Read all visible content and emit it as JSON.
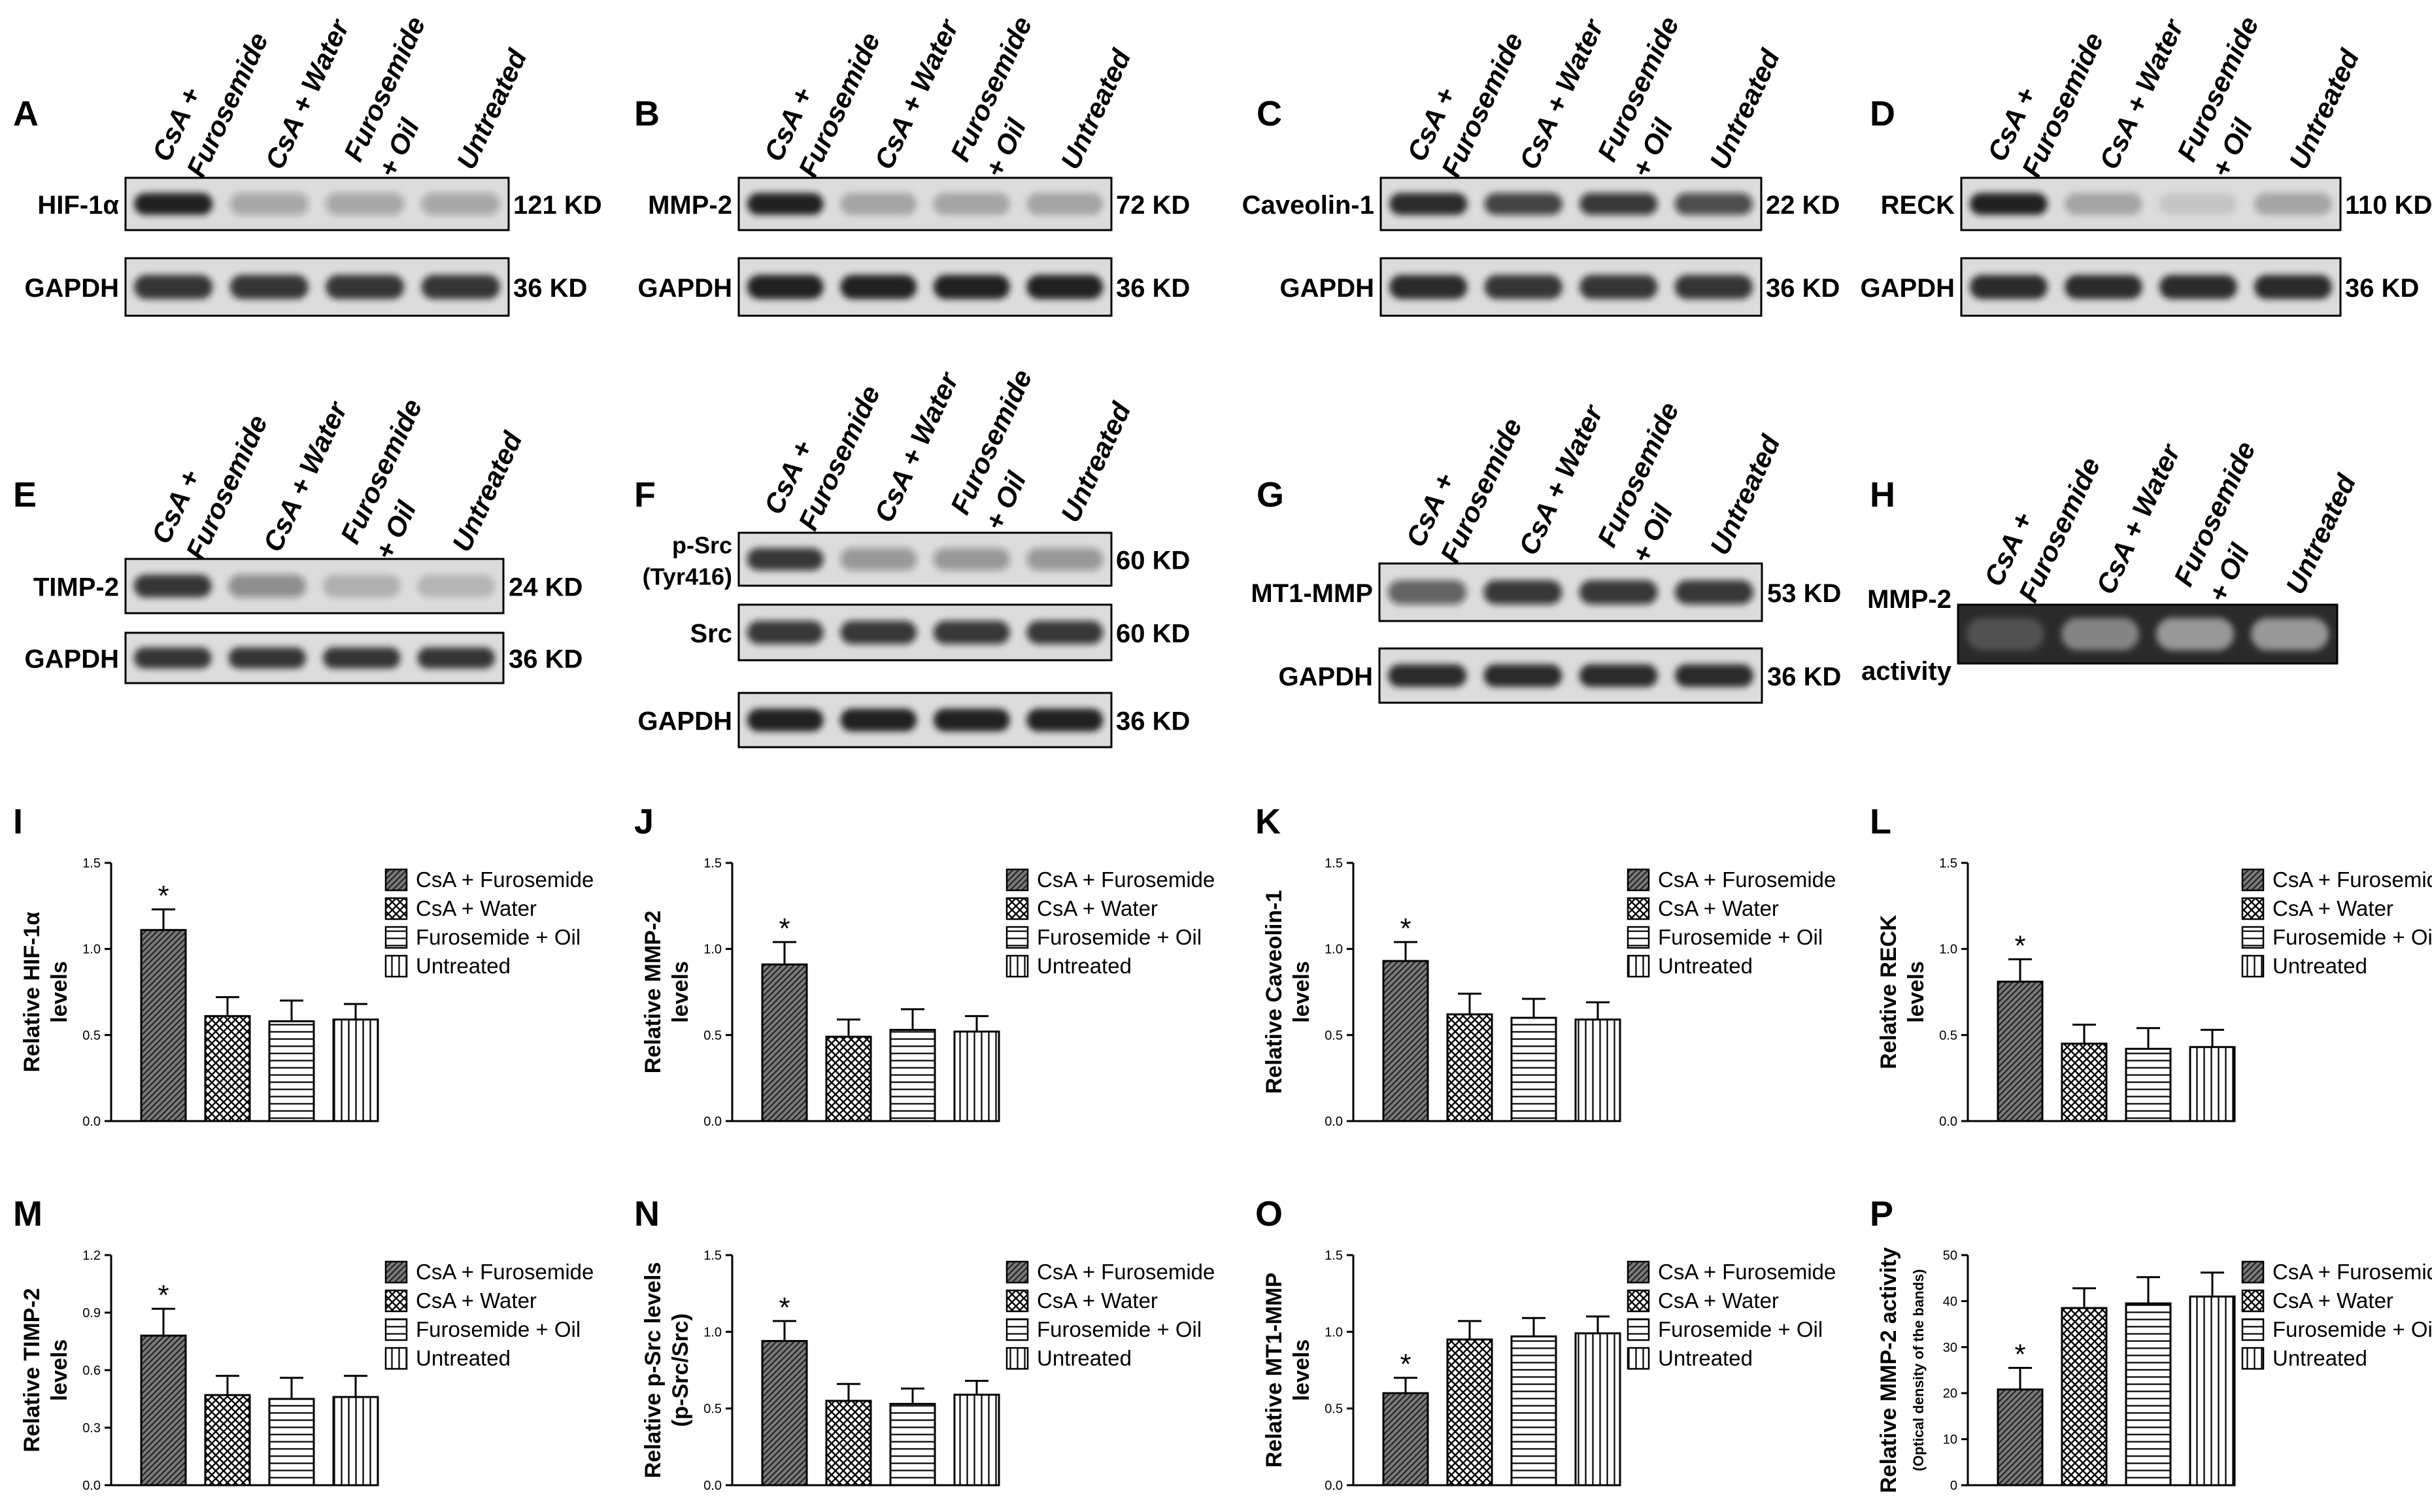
{
  "groups": [
    "CsA + Furosemide",
    "CsA + Water",
    "Furosemide + Oil",
    "Untreated"
  ],
  "lane_labels": [
    [
      "CsA +",
      "Furosemide"
    ],
    [
      "CsA + Water"
    ],
    [
      "Furosemide",
      "+ Oil"
    ],
    [
      "Untreated"
    ]
  ],
  "blots": [
    {
      "letter": "A",
      "rows": [
        {
          "label": [
            "HIF-1α"
          ],
          "size": "121 KD",
          "intensity": [
            0.95,
            0.28,
            0.28,
            0.28
          ]
        },
        {
          "label": [
            "GAPDH"
          ],
          "size": "36 KD",
          "intensity": [
            0.85,
            0.85,
            0.85,
            0.85
          ]
        }
      ]
    },
    {
      "letter": "B",
      "rows": [
        {
          "label": [
            "MMP-2"
          ],
          "size": "72 KD",
          "intensity": [
            0.95,
            0.25,
            0.25,
            0.25
          ]
        },
        {
          "label": [
            "GAPDH"
          ],
          "size": "36 KD",
          "intensity": [
            0.95,
            0.95,
            0.95,
            0.95
          ]
        }
      ]
    },
    {
      "letter": "C",
      "rows": [
        {
          "label": [
            "Caveolin-1"
          ],
          "size": "22 KD",
          "intensity": [
            0.9,
            0.75,
            0.8,
            0.7
          ]
        },
        {
          "label": [
            "GAPDH"
          ],
          "size": "36 KD",
          "intensity": [
            0.9,
            0.85,
            0.85,
            0.85
          ]
        }
      ]
    },
    {
      "letter": "D",
      "rows": [
        {
          "label": [
            "RECK"
          ],
          "size": "110 KD",
          "intensity": [
            0.95,
            0.25,
            0.1,
            0.25
          ]
        },
        {
          "label": [
            "GAPDH"
          ],
          "size": "36 KD",
          "intensity": [
            0.9,
            0.9,
            0.9,
            0.9
          ]
        }
      ]
    },
    {
      "letter": "E",
      "rows": [
        {
          "label": [
            "TIMP-2"
          ],
          "size": "24 KD",
          "intensity": [
            0.85,
            0.4,
            0.2,
            0.18
          ]
        },
        {
          "label": [
            "GAPDH"
          ],
          "size": "36 KD",
          "intensity": [
            0.85,
            0.85,
            0.85,
            0.85
          ]
        }
      ]
    },
    {
      "letter": "F",
      "rows": [
        {
          "label": [
            "p-Src",
            "(Tyr416)"
          ],
          "size": "60 KD",
          "intensity": [
            0.8,
            0.35,
            0.35,
            0.35
          ]
        },
        {
          "label": [
            "Src"
          ],
          "size": "60 KD",
          "intensity": [
            0.8,
            0.8,
            0.8,
            0.8
          ]
        },
        {
          "label": [
            "GAPDH"
          ],
          "size": "36 KD",
          "intensity": [
            0.95,
            0.95,
            0.95,
            0.95
          ]
        }
      ]
    },
    {
      "letter": "G",
      "rows": [
        {
          "label": [
            "MT1-MMP"
          ],
          "size": "53 KD",
          "intensity": [
            0.6,
            0.8,
            0.8,
            0.8
          ]
        },
        {
          "label": [
            "GAPDH"
          ],
          "size": "36 KD",
          "intensity": [
            0.9,
            0.9,
            0.9,
            0.9
          ]
        }
      ]
    },
    {
      "letter": "H",
      "rows": [
        {
          "label": [
            "MMP-2",
            "activity"
          ],
          "size": "",
          "intensity": [
            0.2,
            0.45,
            0.55,
            0.55
          ],
          "zymogram": true
        }
      ]
    }
  ],
  "chart_data": [
    {
      "letter": "I",
      "type": "bar",
      "categories": [
        "CsA + Furosemide",
        "CsA + Water",
        "Furosemide + Oil",
        "Untreated"
      ],
      "values": [
        1.11,
        0.61,
        0.58,
        0.59
      ],
      "errors": [
        0.12,
        0.11,
        0.12,
        0.09
      ],
      "significant": [
        true,
        false,
        false,
        false
      ],
      "ylabel": [
        "Relative HIF-1α",
        "levels"
      ],
      "ylim": [
        0,
        1.5
      ],
      "yticks": [
        "0.0",
        "0.5",
        "1.0",
        "1.5"
      ]
    },
    {
      "letter": "J",
      "type": "bar",
      "categories": [
        "CsA + Furosemide",
        "CsA + Water",
        "Furosemide + Oil",
        "Untreated"
      ],
      "values": [
        0.91,
        0.49,
        0.53,
        0.52
      ],
      "errors": [
        0.13,
        0.1,
        0.12,
        0.09
      ],
      "significant": [
        true,
        false,
        false,
        false
      ],
      "ylabel": [
        "Relative MMP-2",
        "levels"
      ],
      "ylim": [
        0,
        1.5
      ],
      "yticks": [
        "0.0",
        "0.5",
        "1.0",
        "1.5"
      ]
    },
    {
      "letter": "K",
      "type": "bar",
      "categories": [
        "CsA + Furosemide",
        "CsA + Water",
        "Furosemide + Oil",
        "Untreated"
      ],
      "values": [
        0.93,
        0.62,
        0.6,
        0.59
      ],
      "errors": [
        0.11,
        0.12,
        0.11,
        0.1
      ],
      "significant": [
        true,
        false,
        false,
        false
      ],
      "ylabel": [
        "Relative Caveolin-1",
        "levels"
      ],
      "ylim": [
        0,
        1.5
      ],
      "yticks": [
        "0.0",
        "0.5",
        "1.0",
        "1.5"
      ]
    },
    {
      "letter": "L",
      "type": "bar",
      "categories": [
        "CsA + Furosemide",
        "CsA + Water",
        "Furosemide + Oil",
        "Untreated"
      ],
      "values": [
        0.81,
        0.45,
        0.42,
        0.43
      ],
      "errors": [
        0.13,
        0.11,
        0.12,
        0.1
      ],
      "significant": [
        true,
        false,
        false,
        false
      ],
      "ylabel": [
        "Relative RECK",
        "levels"
      ],
      "ylim": [
        0,
        1.5
      ],
      "yticks": [
        "0.0",
        "0.5",
        "1.0",
        "1.5"
      ]
    },
    {
      "letter": "M",
      "type": "bar",
      "categories": [
        "CsA + Furosemide",
        "CsA + Water",
        "Furosemide + Oil",
        "Untreated"
      ],
      "values": [
        0.78,
        0.47,
        0.45,
        0.46
      ],
      "errors": [
        0.14,
        0.1,
        0.11,
        0.11
      ],
      "significant": [
        true,
        false,
        false,
        false
      ],
      "ylabel": [
        "Relative TIMP-2",
        "levels"
      ],
      "ylim": [
        0,
        1.2
      ],
      "yticks": [
        "0.0",
        "0.3",
        "0.6",
        "0.9",
        "1.2"
      ]
    },
    {
      "letter": "N",
      "type": "bar",
      "categories": [
        "CsA + Furosemide",
        "CsA + Water",
        "Furosemide + Oil",
        "Untreated"
      ],
      "values": [
        0.94,
        0.55,
        0.53,
        0.59
      ],
      "errors": [
        0.13,
        0.11,
        0.1,
        0.09
      ],
      "significant": [
        true,
        false,
        false,
        false
      ],
      "ylabel": [
        "Relative p-Src levels",
        "(p-Src/Src)"
      ],
      "ylim": [
        0,
        1.5
      ],
      "yticks": [
        "0.0",
        "0.5",
        "1.0",
        "1.5"
      ]
    },
    {
      "letter": "O",
      "type": "bar",
      "categories": [
        "CsA + Furosemide",
        "CsA + Water",
        "Furosemide + Oil",
        "Untreated"
      ],
      "values": [
        0.6,
        0.95,
        0.97,
        0.99
      ],
      "errors": [
        0.1,
        0.12,
        0.12,
        0.11
      ],
      "significant": [
        true,
        false,
        false,
        false
      ],
      "ylabel": [
        "Relative MT1-MMP",
        "levels"
      ],
      "ylim": [
        0,
        1.5
      ],
      "yticks": [
        "0.0",
        "0.5",
        "1.0",
        "1.5"
      ]
    },
    {
      "letter": "P",
      "type": "bar",
      "categories": [
        "CsA + Furosemide",
        "CsA + Water",
        "Furosemide + Oil",
        "Untreated"
      ],
      "values": [
        20.8,
        38.5,
        39.5,
        41
      ],
      "errors": [
        4.7,
        4.3,
        5.7,
        5.2
      ],
      "significant": [
        true,
        false,
        false,
        false
      ],
      "ylabel": [
        "Relative MMP-2 activity",
        "(Optical density of the bands)"
      ],
      "ylim": [
        0,
        50
      ],
      "yticks": [
        "0",
        "10",
        "20",
        "30",
        "40",
        "50"
      ]
    }
  ],
  "legend_items": [
    "CsA + Furosemide",
    "CsA + Water",
    "Furosemide + Oil",
    "Untreated"
  ],
  "significance_marker": "*",
  "colors": {
    "ink": "#000000",
    "background": "#ffffff",
    "blot_frame": "#dcdcdc",
    "band": "#141414"
  }
}
